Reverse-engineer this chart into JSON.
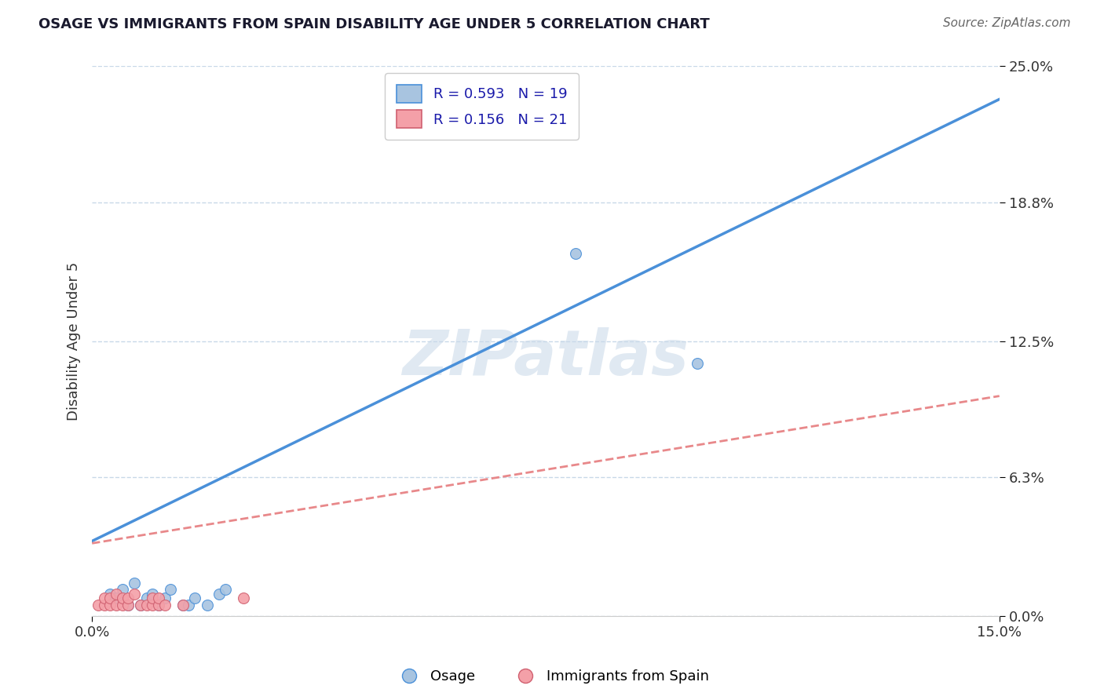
{
  "title": "OSAGE VS IMMIGRANTS FROM SPAIN DISABILITY AGE UNDER 5 CORRELATION CHART",
  "source": "Source: ZipAtlas.com",
  "ylabel": "Disability Age Under 5",
  "xlim": [
    0.0,
    0.15
  ],
  "ylim": [
    0.0,
    0.25
  ],
  "xtick_labels": [
    "0.0%",
    "15.0%"
  ],
  "ytick_labels": [
    "0.0%",
    "6.3%",
    "12.5%",
    "18.8%",
    "25.0%"
  ],
  "ytick_values": [
    0.0,
    0.063,
    0.125,
    0.188,
    0.25
  ],
  "xtick_values": [
    0.0,
    0.15
  ],
  "R_osage": 0.593,
  "N_osage": 19,
  "R_spain": 0.156,
  "N_spain": 21,
  "osage_color": "#a8c4e0",
  "spain_color": "#f4a0a8",
  "line_osage_color": "#4a90d9",
  "line_spain_color": "#e8888a",
  "background_color": "#ffffff",
  "grid_color": "#c8d8e8",
  "watermark": "ZIPatlas",
  "osage_scatter_x": [
    0.003,
    0.004,
    0.005,
    0.006,
    0.007,
    0.008,
    0.009,
    0.01,
    0.011,
    0.012,
    0.013,
    0.015,
    0.016,
    0.017,
    0.019,
    0.021,
    0.022,
    0.08,
    0.1
  ],
  "osage_scatter_y": [
    0.01,
    0.008,
    0.012,
    0.005,
    0.015,
    0.005,
    0.008,
    0.01,
    0.005,
    0.008,
    0.012,
    0.005,
    0.005,
    0.008,
    0.005,
    0.01,
    0.012,
    0.165,
    0.115
  ],
  "spain_scatter_x": [
    0.001,
    0.002,
    0.002,
    0.003,
    0.003,
    0.004,
    0.004,
    0.005,
    0.005,
    0.006,
    0.006,
    0.007,
    0.008,
    0.009,
    0.01,
    0.01,
    0.011,
    0.011,
    0.012,
    0.015,
    0.025
  ],
  "spain_scatter_y": [
    0.005,
    0.005,
    0.008,
    0.005,
    0.008,
    0.005,
    0.01,
    0.005,
    0.008,
    0.005,
    0.008,
    0.01,
    0.005,
    0.005,
    0.005,
    0.008,
    0.005,
    0.008,
    0.005,
    0.005,
    0.008
  ],
  "osage_line_x0": 0.0,
  "osage_line_y0": 0.034,
  "osage_line_x1": 0.15,
  "osage_line_y1": 0.235,
  "spain_line_x0": 0.0,
  "spain_line_y0": 0.033,
  "spain_line_x1": 0.15,
  "spain_line_y1": 0.1
}
